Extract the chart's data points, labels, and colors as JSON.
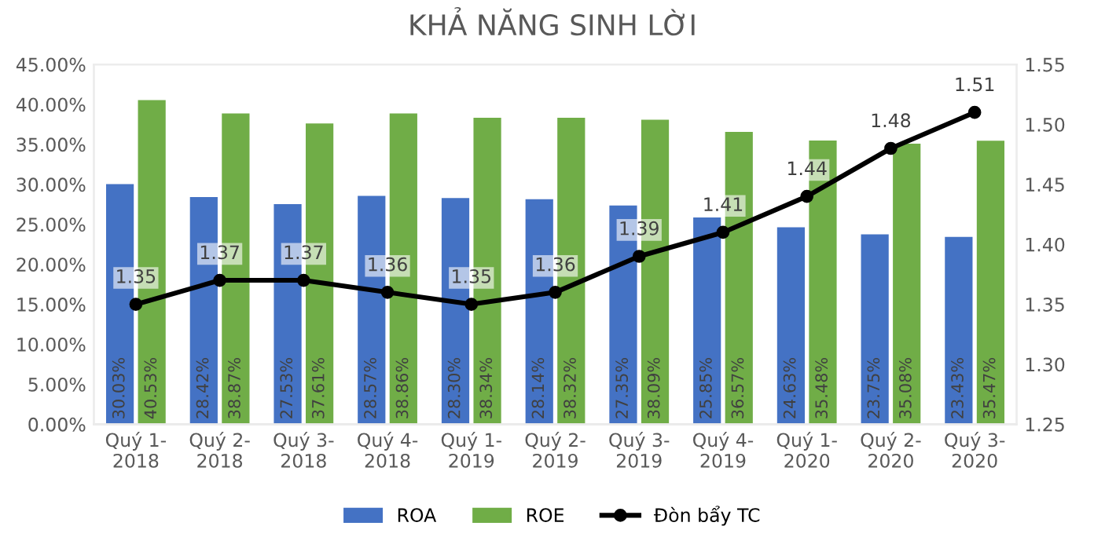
{
  "chart_data": {
    "type": "bar",
    "title": "KHẢ NĂNG SINH LỜI",
    "categories": [
      "Quý 1-\n2018",
      "Quý 2-\n2018",
      "Quý 3-\n2018",
      "Quý 4-\n2018",
      "Quý 1-\n2019",
      "Quý 2-\n2019",
      "Quý 3-\n2019",
      "Quý 4-\n2019",
      "Quý 1-\n2020",
      "Quý 2-\n2020",
      "Quý 3-\n2020"
    ],
    "series": [
      {
        "name": "ROA",
        "color": "#4472c4",
        "values": [
          30.03,
          28.42,
          27.53,
          28.57,
          28.3,
          28.14,
          27.35,
          25.85,
          24.63,
          23.75,
          23.43
        ],
        "value_labels": [
          "30.03%",
          "28.42%",
          "27.53%",
          "28.57%",
          "28.30%",
          "28.14%",
          "27.35%",
          "25.85%",
          "24.63%",
          "23.75%",
          "23.43%"
        ]
      },
      {
        "name": "ROE",
        "color": "#70ad47",
        "values": [
          40.53,
          38.87,
          37.61,
          38.86,
          38.34,
          38.32,
          38.09,
          36.57,
          35.48,
          35.08,
          35.47
        ],
        "value_labels": [
          "40.53%",
          "38.87%",
          "37.61%",
          "38.86%",
          "38.34%",
          "38.32%",
          "38.09%",
          "36.57%",
          "35.48%",
          "35.08%",
          "35.47%"
        ]
      },
      {
        "name": "Đòn bẩy TC",
        "type": "line",
        "axis": "y2",
        "color": "#000000",
        "marker": "circle",
        "values": [
          1.35,
          1.37,
          1.37,
          1.36,
          1.35,
          1.36,
          1.39,
          1.41,
          1.44,
          1.48,
          1.51
        ],
        "value_labels": [
          "1.35",
          "1.37",
          "1.37",
          "1.36",
          "1.35",
          "1.36",
          "1.39",
          "1.41",
          "1.44",
          "1.48",
          "1.51"
        ]
      }
    ],
    "ylim": [
      0,
      45
    ],
    "yticks": [
      {
        "value": 0,
        "label": "0.00%"
      },
      {
        "value": 5,
        "label": "5.00%"
      },
      {
        "value": 10,
        "label": "10.00%"
      },
      {
        "value": 15,
        "label": "15.00%"
      },
      {
        "value": 20,
        "label": "20.00%"
      },
      {
        "value": 25,
        "label": "25.00%"
      },
      {
        "value": 30,
        "label": "30.00%"
      },
      {
        "value": 35,
        "label": "35.00%"
      },
      {
        "value": 40,
        "label": "40.00%"
      },
      {
        "value": 45,
        "label": "45.00%"
      }
    ],
    "y2lim": [
      1.25,
      1.55
    ],
    "y2ticks": [
      1.25,
      {
        "value": 1.3,
        "label": "1.30"
      },
      1.35,
      {
        "value": 1.4,
        "label": "1.40"
      },
      1.45,
      {
        "value": 1.5,
        "label": "1.50"
      },
      1.55
    ],
    "grid": false,
    "legend": "bottom"
  }
}
